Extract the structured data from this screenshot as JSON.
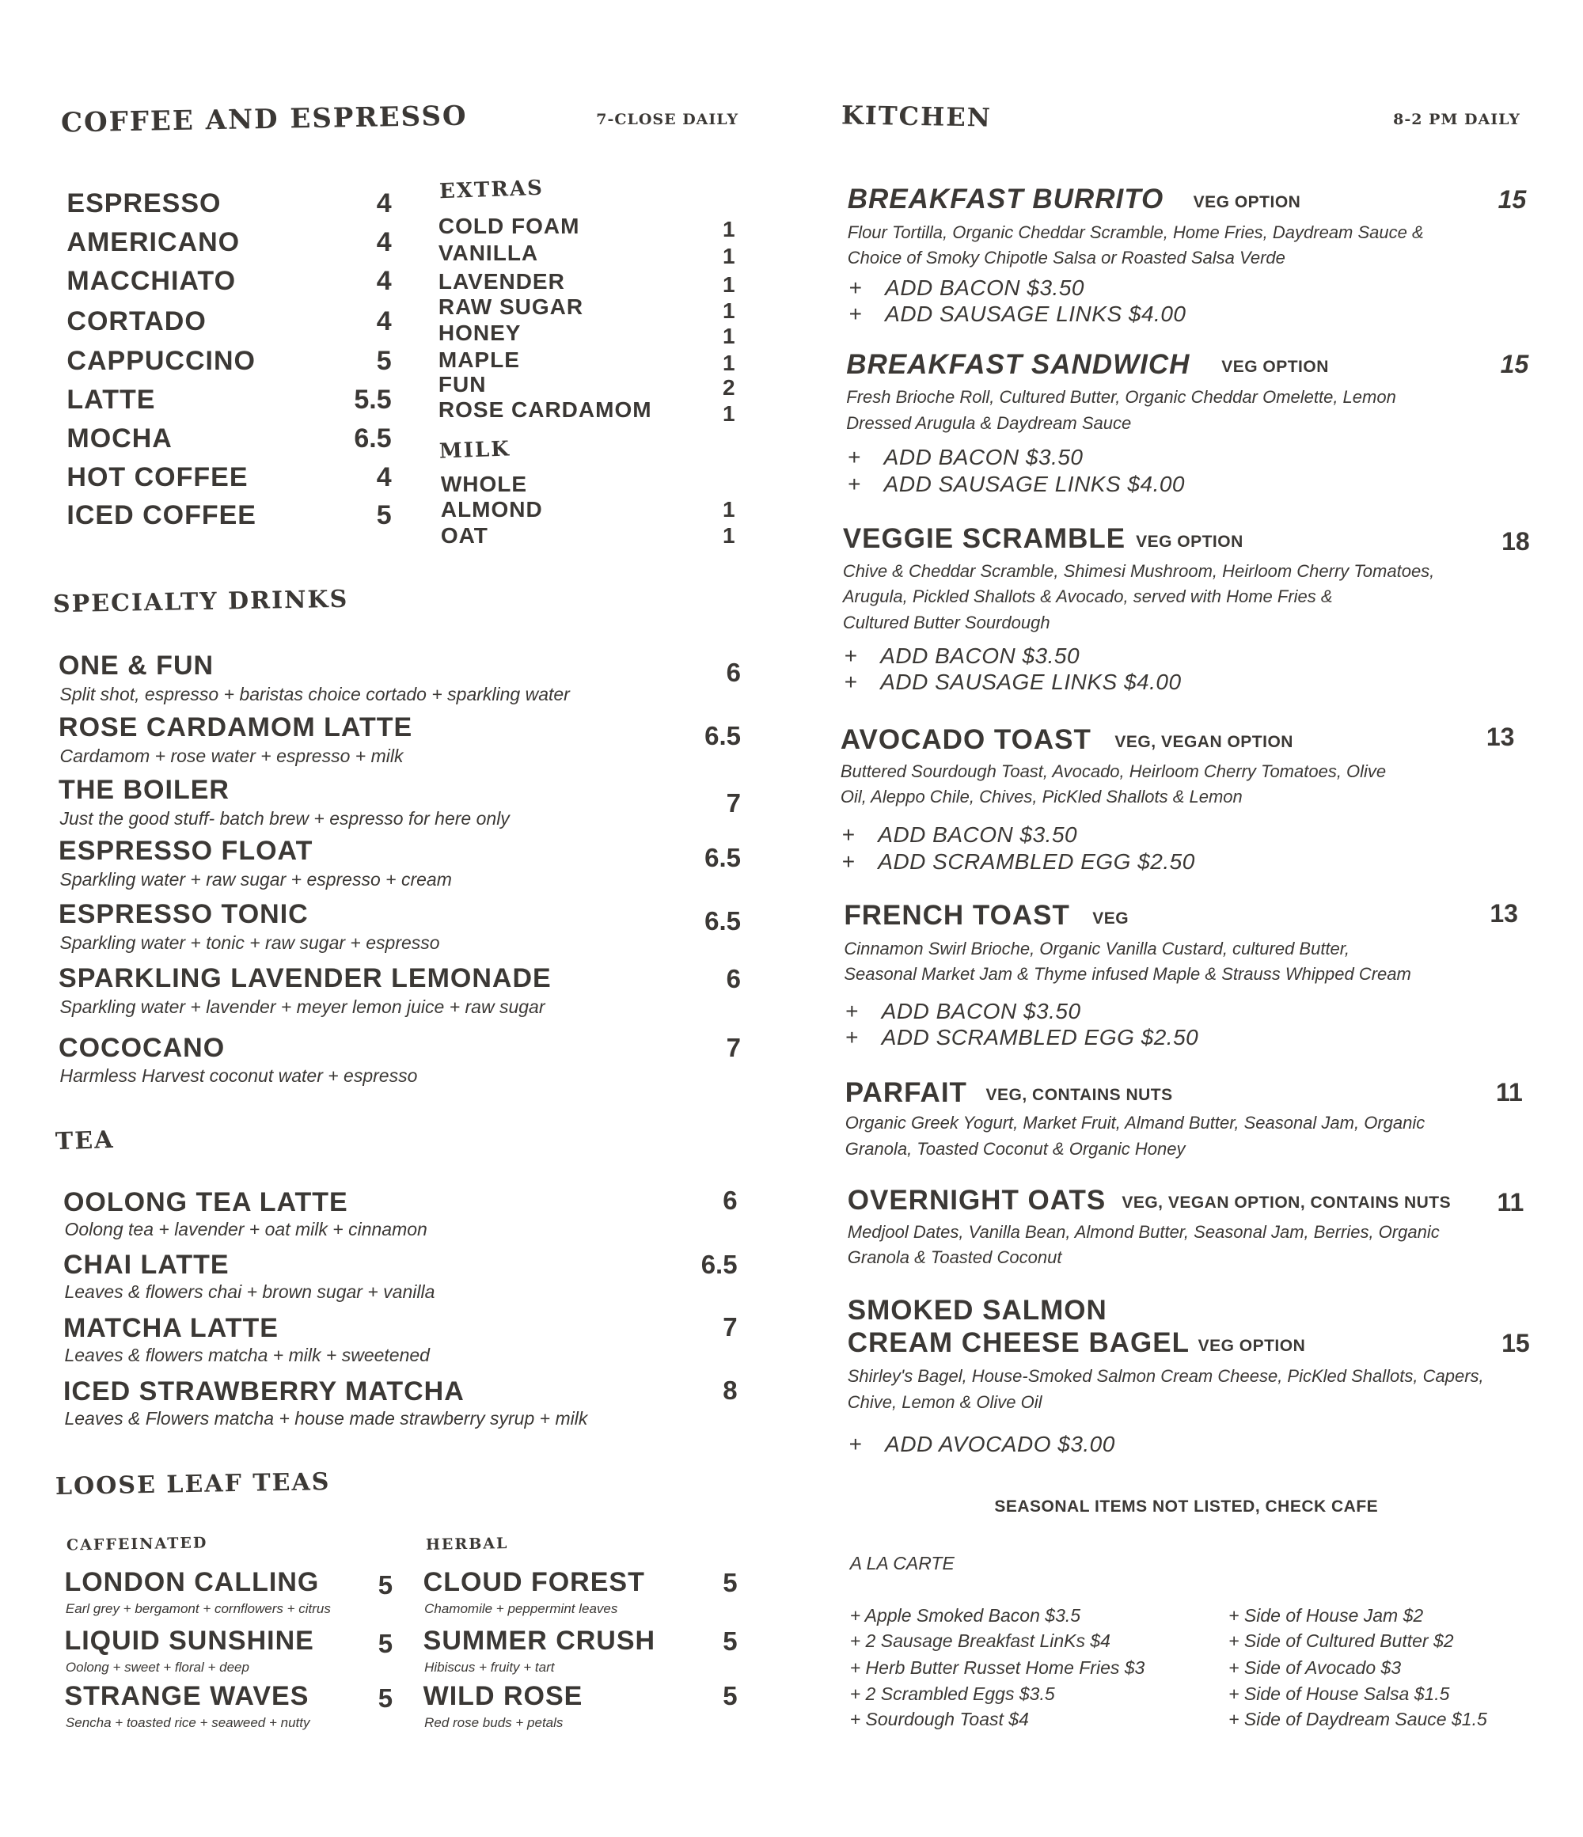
{
  "coffee": {
    "title": "COFFEE AND ESPRESSO",
    "hours": "7-CLOSE DAILY",
    "items": [
      {
        "name": "ESPRESSO",
        "price": "4"
      },
      {
        "name": "AMERICANO",
        "price": "4"
      },
      {
        "name": "MACCHIATO",
        "price": "4"
      },
      {
        "name": "CORTADO",
        "price": "4"
      },
      {
        "name": "CAPPUCCINO",
        "price": "5"
      },
      {
        "name": "LATTE",
        "price": "5.5"
      },
      {
        "name": "MOCHA",
        "price": "6.5"
      },
      {
        "name": "HOT COFFEE",
        "price": "4"
      },
      {
        "name": "ICED COFFEE",
        "price": "5"
      }
    ],
    "extras": {
      "title": "EXTRAS",
      "items": [
        {
          "name": "COLD FOAM",
          "price": "1"
        },
        {
          "name": "VANILLA",
          "price": "1"
        },
        {
          "name": "LAVENDER",
          "price": "1"
        },
        {
          "name": "RAW SUGAR",
          "price": "1"
        },
        {
          "name": "HONEY",
          "price": "1"
        },
        {
          "name": "MAPLE",
          "price": "1"
        },
        {
          "name": "FUN",
          "price": "2"
        },
        {
          "name": "ROSE CARDAMOM",
          "price": "1"
        }
      ]
    },
    "milk": {
      "title": "MILK",
      "items": [
        {
          "name": "WHOLE",
          "price": ""
        },
        {
          "name": "ALMOND",
          "price": "1"
        },
        {
          "name": "OAT",
          "price": "1"
        }
      ]
    }
  },
  "specialty": {
    "title": "SPECIALTY DRINKS",
    "items": [
      {
        "name": "ONE & FUN",
        "desc": "Split shot, espresso + baristas choice cortado + sparkling water",
        "price": "6"
      },
      {
        "name": "ROSE CARDAMOM LATTE",
        "desc": "Cardamom + rose water + espresso + milk",
        "price": "6.5"
      },
      {
        "name": "THE BOILER",
        "desc": "Just the good stuff- batch brew + espresso for here only",
        "price": "7"
      },
      {
        "name": "ESPRESSO FLOAT",
        "desc": "Sparkling water + raw sugar + espresso + cream",
        "price": "6.5"
      },
      {
        "name": "ESPRESSO TONIC",
        "desc": "Sparkling water + tonic + raw sugar + espresso",
        "price": "6.5"
      },
      {
        "name": "SPARKLING LAVENDER LEMONADE",
        "desc": "Sparkling water + lavender + meyer lemon juice + raw sugar",
        "price": "6"
      },
      {
        "name": "COCOCANO",
        "desc": "Harmless Harvest coconut water + espresso",
        "price": "7"
      }
    ]
  },
  "tea": {
    "title": "TEA",
    "items": [
      {
        "name": "OOLONG TEA LATTE",
        "desc": "Oolong tea + lavender + oat milk + cinnamon",
        "price": "6"
      },
      {
        "name": "CHAI LATTE",
        "desc": "Leaves & flowers chai + brown sugar + vanilla",
        "price": "6.5"
      },
      {
        "name": "MATCHA LATTE",
        "desc": "Leaves & flowers matcha + milk + sweetened",
        "price": "7"
      },
      {
        "name": "ICED STRAWBERRY MATCHA",
        "desc": "Leaves & Flowers matcha + house made strawberry syrup + milk",
        "price": "8"
      }
    ]
  },
  "loose_leaf": {
    "title": "LOOSE LEAF TEAS",
    "caffeinated": {
      "title": "CAFFEINATED",
      "items": [
        {
          "name": "LONDON CALLING",
          "desc": "Earl grey + bergamont + cornflowers + citrus",
          "price": "5"
        },
        {
          "name": "LIQUID SUNSHINE",
          "desc": "Oolong + sweet + floral + deep",
          "price": "5"
        },
        {
          "name": "STRANGE WAVES",
          "desc": "Sencha + toasted rice + seaweed + nutty",
          "price": "5"
        }
      ]
    },
    "herbal": {
      "title": "HERBAL",
      "items": [
        {
          "name": "CLOUD FOREST",
          "desc": "Chamomile + peppermint leaves",
          "price": "5"
        },
        {
          "name": "SUMMER CRUSH",
          "desc": "Hibiscus + fruity + tart",
          "price": "5"
        },
        {
          "name": "WILD ROSE",
          "desc": "Red rose buds + petals",
          "price": "5"
        }
      ]
    }
  },
  "kitchen": {
    "title": "KITCHEN",
    "hours": "8-2 PM DAILY",
    "items": [
      {
        "name": "BREAKFAST BURRITO",
        "tags": "VEG OPTION",
        "price": "15",
        "desc": [
          "Flour Tortilla, Organic Cheddar Scramble, Home Fries, Daydream Sauce &",
          "Choice of Smoky Chipotle Salsa or Roasted Salsa Verde"
        ],
        "adds": [
          "ADD BACON $3.50",
          "ADD SAUSAGE LINKS $4.00"
        ]
      },
      {
        "name": "BREAKFAST SANDWICH",
        "tags": "VEG OPTION",
        "price": "15",
        "desc": [
          "Fresh Brioche Roll, Cultured Butter, Organic Cheddar Omelette, Lemon",
          "Dressed Arugula & Daydream Sauce"
        ],
        "adds": [
          "ADD BACON $3.50",
          "ADD SAUSAGE LINKS $4.00"
        ]
      },
      {
        "name": "VEGGIE SCRAMBLE",
        "tags": "VEG OPTION",
        "price": "18",
        "desc": [
          "Chive & Cheddar Scramble, Shimesi Mushroom, Heirloom Cherry Tomatoes,",
          "Arugula, Pickled Shallots & Avocado, served with Home Fries &",
          "Cultured Butter Sourdough"
        ],
        "adds": [
          "ADD BACON $3.50",
          "ADD SAUSAGE LINKS $4.00"
        ]
      },
      {
        "name": "AVOCADO TOAST",
        "tags": "VEG, VEGAN OPTION",
        "price": "13",
        "desc": [
          "Buttered Sourdough Toast, Avocado, Heirloom Cherry Tomatoes, Olive",
          "Oil, Aleppo Chile, Chives, PicKled Shallots & Lemon"
        ],
        "adds": [
          "ADD BACON $3.50",
          "ADD SCRAMBLED EGG $2.50"
        ]
      },
      {
        "name": "FRENCH TOAST",
        "tags": "VEG",
        "price": "13",
        "desc": [
          "Cinnamon Swirl Brioche, Organic Vanilla Custard, cultured Butter,",
          "Seasonal Market Jam & Thyme infused Maple & Strauss Whipped Cream"
        ],
        "adds": [
          "ADD BACON $3.50",
          "ADD SCRAMBLED EGG $2.50"
        ]
      },
      {
        "name": "PARFAIT",
        "tags": "VEG, CONTAINS NUTS",
        "price": "11",
        "desc": [
          "Organic Greek Yogurt, Market Fruit, Almand Butter, Seasonal Jam, Organic",
          "Granola, Toasted Coconut & Organic Honey"
        ],
        "adds": []
      },
      {
        "name": "OVERNIGHT OATS",
        "tags": "VEG, VEGAN OPTION, CONTAINS NUTS",
        "price": "11",
        "desc": [
          "Medjool Dates, Vanilla Bean, Almond Butter, Seasonal Jam, Berries, Organic",
          "Granola & Toasted Coconut"
        ],
        "adds": []
      },
      {
        "name": "SMOKED SALMON",
        "name2": "CREAM CHEESE BAGEL",
        "tags": "VEG OPTION",
        "price": "15",
        "desc": [
          "Shirley's Bagel, House-Smoked Salmon Cream Cheese, PicKled Shallots, Capers,",
          "Chive, Lemon & Olive Oil"
        ],
        "adds": [
          "ADD AVOCADO $3.00"
        ]
      }
    ],
    "add_symbol": "+",
    "seasonal_note": "SEASONAL ITEMS NOT LISTED, CHECK CAFE",
    "a_la_carte": {
      "title": "A LA CARTE",
      "left": [
        "+ Apple Smoked Bacon $3.5",
        "+ 2 Sausage Breakfast LinKs $4",
        "+ Herb Butter Russet Home Fries $3",
        "+ 2 Scrambled Eggs $3.5",
        "+ Sourdough Toast $4"
      ],
      "right": [
        "+ Side of House Jam $2",
        "+ Side of Cultured Butter $2",
        "+ Side of Avocado $3",
        "+ Side of House Salsa $1.5",
        "+ Side of Daydream Sauce $1.5"
      ]
    }
  },
  "colors": {
    "text": "#3b3835",
    "background": "#ffffff"
  }
}
